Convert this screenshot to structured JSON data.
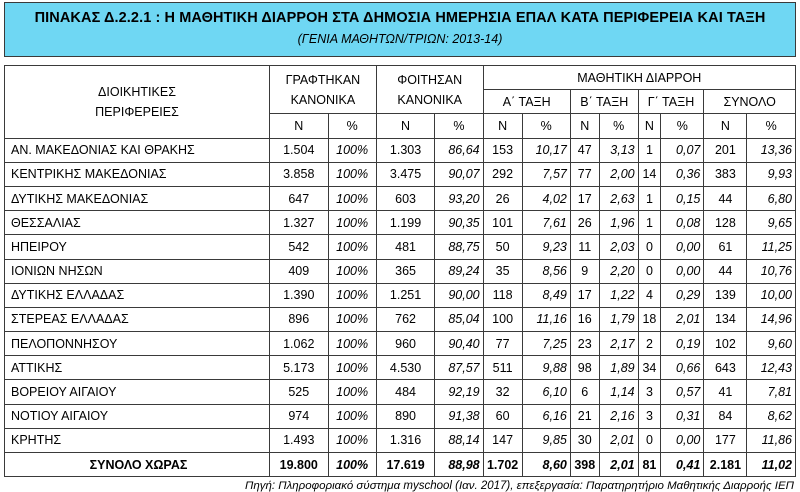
{
  "title": {
    "main": "ΠΙΝΑΚΑΣ Δ.2.2.1 : Η ΜΑΘΗΤΙΚΗ ΔΙΑΡΡΟΗ ΣΤΑ ΔΗΜΟΣΙΑ ΗΜΕΡΗΣΙΑ ΕΠΑΛ ΚΑΤΑ ΠΕΡΙΦΕΡΕΙΑ ΚΑΙ ΤΑΞΗ",
    "sub": "(ΓΕΝΙΑ  ΜΑΘΗΤΩΝ/ΤΡΙΩΝ: 2013-14)"
  },
  "headers": {
    "regions_l1": "ΔΙΟΙΚΗΤΙΚΕΣ",
    "regions_l2": "ΠΕΡΙΦΕΡΕΙΕΣ",
    "enrolled_l1": "ΓΡΑΦΤΗΚΑΝ",
    "enrolled_l2": "ΚΑΝΟΝΙΚΑ",
    "attended_l1": "ΦΟΙΤΗΣΑΝ",
    "attended_l2": "ΚΑΝΟΝΙΚΑ",
    "dropout": "ΜΑΘΗΤΙΚΗ ΔΙΑΡΡΟΗ",
    "grade_a": "Α΄ ΤΑΞΗ",
    "grade_b": "Β΄ ΤΑΞΗ",
    "grade_c": "Γ΄ ΤΑΞΗ",
    "total": "ΣΥΝΟΛΟ",
    "n": "Ν",
    "pct": "%"
  },
  "rows": [
    [
      "ΑΝ. ΜΑΚΕΔΟΝΙΑΣ ΚΑΙ ΘΡΑΚΗΣ",
      "1.504",
      "100%",
      "1.303",
      "86,64",
      "153",
      "10,17",
      "47",
      "3,13",
      "1",
      "0,07",
      "201",
      "13,36"
    ],
    [
      "ΚΕΝΤΡΙΚΗΣ ΜΑΚΕΔΟΝΙΑΣ",
      "3.858",
      "100%",
      "3.475",
      "90,07",
      "292",
      "7,57",
      "77",
      "2,00",
      "14",
      "0,36",
      "383",
      "9,93"
    ],
    [
      "ΔΥΤΙΚΗΣ ΜΑΚΕΔΟΝΙΑΣ",
      "647",
      "100%",
      "603",
      "93,20",
      "26",
      "4,02",
      "17",
      "2,63",
      "1",
      "0,15",
      "44",
      "6,80"
    ],
    [
      "ΘΕΣΣΑΛΙΑΣ",
      "1.327",
      "100%",
      "1.199",
      "90,35",
      "101",
      "7,61",
      "26",
      "1,96",
      "1",
      "0,08",
      "128",
      "9,65"
    ],
    [
      "ΗΠΕΙΡΟΥ",
      "542",
      "100%",
      "481",
      "88,75",
      "50",
      "9,23",
      "11",
      "2,03",
      "0",
      "0,00",
      "61",
      "11,25"
    ],
    [
      "ΙΟΝΙΩΝ ΝΗΣΩΝ",
      "409",
      "100%",
      "365",
      "89,24",
      "35",
      "8,56",
      "9",
      "2,20",
      "0",
      "0,00",
      "44",
      "10,76"
    ],
    [
      "ΔΥΤΙΚΗΣ ΕΛΛΑΔΑΣ",
      "1.390",
      "100%",
      "1.251",
      "90,00",
      "118",
      "8,49",
      "17",
      "1,22",
      "4",
      "0,29",
      "139",
      "10,00"
    ],
    [
      "ΣΤΕΡΕΑΣ ΕΛΛΑΔΑΣ",
      "896",
      "100%",
      "762",
      "85,04",
      "100",
      "11,16",
      "16",
      "1,79",
      "18",
      "2,01",
      "134",
      "14,96"
    ],
    [
      "ΠΕΛΟΠΟΝΝΗΣΟΥ",
      "1.062",
      "100%",
      "960",
      "90,40",
      "77",
      "7,25",
      "23",
      "2,17",
      "2",
      "0,19",
      "102",
      "9,60"
    ],
    [
      "ΑΤΤΙΚΗΣ",
      "5.173",
      "100%",
      "4.530",
      "87,57",
      "511",
      "9,88",
      "98",
      "1,89",
      "34",
      "0,66",
      "643",
      "12,43"
    ],
    [
      "ΒΟΡΕΙΟΥ ΑΙΓΑΙΟΥ",
      "525",
      "100%",
      "484",
      "92,19",
      "32",
      "6,10",
      "6",
      "1,14",
      "3",
      "0,57",
      "41",
      "7,81"
    ],
    [
      "ΝΟΤΙΟΥ ΑΙΓΑΙΟΥ",
      "974",
      "100%",
      "890",
      "91,38",
      "60",
      "6,16",
      "21",
      "2,16",
      "3",
      "0,31",
      "84",
      "8,62"
    ],
    [
      "ΚΡΗΤΗΣ",
      "1.493",
      "100%",
      "1.316",
      "88,14",
      "147",
      "9,85",
      "30",
      "2,01",
      "0",
      "0,00",
      "177",
      "11,86"
    ]
  ],
  "total_row": [
    "ΣΥΝΟΛΟ ΧΩΡΑΣ",
    "19.800",
    "100%",
    "17.619",
    "88,98",
    "1.702",
    "8,60",
    "398",
    "2,01",
    "81",
    "0,41",
    "2.181",
    "11,02"
  ],
  "footer": "Πηγή: Πληροφοριακό σύστημα myschool (Ιαν. 2017), επεξεργασία: Παρατηρητήριο Μαθητικής Διαρροής ΙΕΠ",
  "colors": {
    "title_bg": "#6fd7f3",
    "border": "#3a3a3a"
  }
}
